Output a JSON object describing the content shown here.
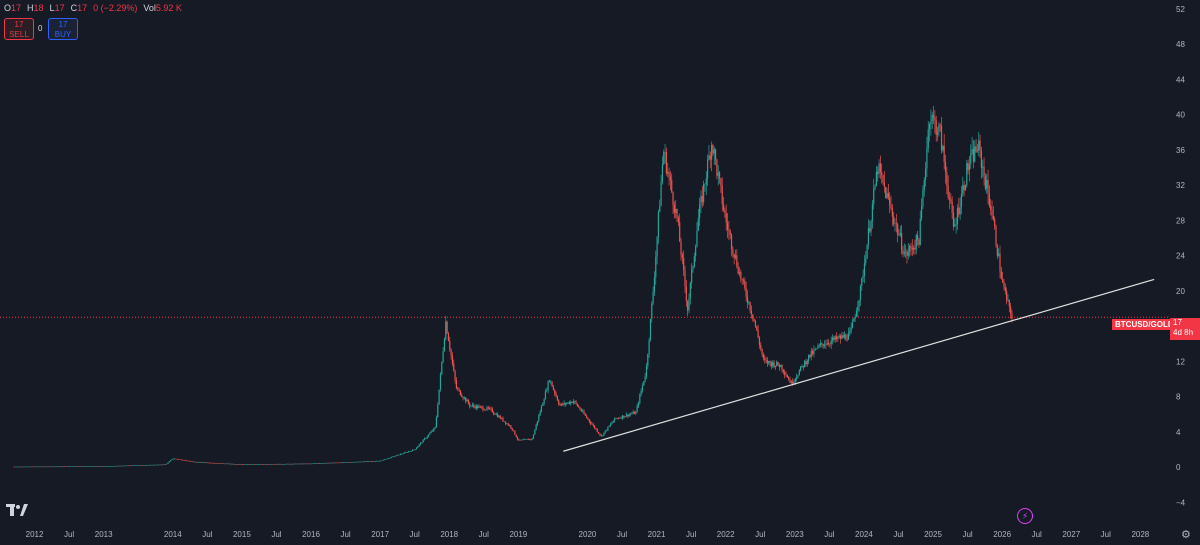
{
  "legend": {
    "o_label": "O",
    "o_value": "17",
    "h_label": "H",
    "h_value": "18",
    "l_label": "L",
    "l_value": "17",
    "c_label": "C",
    "c_value": "17",
    "change": "0 (−2.29%)",
    "vol_label": "Vol",
    "vol_value": "5.92 K"
  },
  "trade": {
    "sell_price": "17",
    "sell_label": "SELL",
    "spread": "0",
    "buy_price": "17",
    "buy_label": "BUY"
  },
  "price_label": {
    "symbol": "BTCUSD/GOLD",
    "price": "17",
    "countdown": "4d 8h"
  },
  "icons": {
    "logo": "tradingview-logo-icon",
    "settings": "gear-icon",
    "event": "lightning-event-icon"
  },
  "colors": {
    "background": "#161a25",
    "up": "#26a69a",
    "down": "#ef5350",
    "trendline": "#e0e0e0",
    "last_price": "#f23645"
  },
  "chart_data": {
    "type": "candlestick",
    "symbol": "BTCUSD/GOLD",
    "interval": "weekly",
    "y_ticks": [
      -4,
      0,
      4,
      8,
      12,
      16,
      20,
      24,
      28,
      32,
      36,
      40,
      44,
      48,
      52
    ],
    "ylim": [
      -6,
      53
    ],
    "x_ticks": [
      "2012",
      "Jul",
      "2013",
      "2014",
      "Jul",
      "2015",
      "Jul",
      "2016",
      "Jul",
      "2017",
      "Jul",
      "2018",
      "Jul",
      "2019",
      "2020",
      "Jul",
      "2021",
      "Jul",
      "2022",
      "Jul",
      "2023",
      "Jul",
      "2024",
      "Jul",
      "2025",
      "Jul",
      "2026",
      "Jul",
      "2027",
      "Jul",
      "2028"
    ],
    "x_tick_years": [
      2012.0,
      2012.5,
      2013.0,
      2014.0,
      2014.5,
      2015.0,
      2015.5,
      2016.0,
      2016.5,
      2017.0,
      2017.5,
      2018.0,
      2018.5,
      2019.0,
      2020.0,
      2020.5,
      2021.0,
      2021.5,
      2022.0,
      2022.5,
      2023.0,
      2023.5,
      2024.0,
      2024.5,
      2025.0,
      2025.5,
      2026.0,
      2026.5,
      2027.0,
      2027.5,
      2028.0
    ],
    "xlim": [
      2011.5,
      2028.4
    ],
    "price_path": [
      [
        2011.7,
        0.05
      ],
      [
        2013.0,
        0.1
      ],
      [
        2013.9,
        0.3
      ],
      [
        2014.0,
        1.0
      ],
      [
        2014.3,
        0.6
      ],
      [
        2015.0,
        0.3
      ],
      [
        2016.0,
        0.4
      ],
      [
        2017.0,
        0.7
      ],
      [
        2017.5,
        2.0
      ],
      [
        2017.8,
        4.5
      ],
      [
        2017.95,
        16.5
      ],
      [
        2018.1,
        9.0
      ],
      [
        2018.3,
        7.0
      ],
      [
        2018.6,
        6.5
      ],
      [
        2018.9,
        4.5
      ],
      [
        2019.0,
        3.0
      ],
      [
        2019.2,
        3.2
      ],
      [
        2019.45,
        10.0
      ],
      [
        2019.6,
        7.0
      ],
      [
        2019.8,
        7.5
      ],
      [
        2019.95,
        6.0
      ],
      [
        2020.2,
        3.5
      ],
      [
        2020.4,
        5.5
      ],
      [
        2020.7,
        6.2
      ],
      [
        2020.85,
        11.0
      ],
      [
        2020.95,
        20.0
      ],
      [
        2021.1,
        36.0
      ],
      [
        2021.3,
        28.0
      ],
      [
        2021.45,
        18.0
      ],
      [
        2021.6,
        28.0
      ],
      [
        2021.8,
        37.0
      ],
      [
        2022.0,
        28.0
      ],
      [
        2022.2,
        22.0
      ],
      [
        2022.4,
        17.0
      ],
      [
        2022.55,
        12.0
      ],
      [
        2022.8,
        11.5
      ],
      [
        2022.95,
        9.5
      ],
      [
        2023.2,
        12.5
      ],
      [
        2023.4,
        14.0
      ],
      [
        2023.6,
        14.5
      ],
      [
        2023.8,
        15.0
      ],
      [
        2023.95,
        20.0
      ],
      [
        2024.2,
        34.0
      ],
      [
        2024.4,
        29.0
      ],
      [
        2024.6,
        24.0
      ],
      [
        2024.8,
        26.0
      ],
      [
        2024.95,
        40.0
      ],
      [
        2025.1,
        38.0
      ],
      [
        2025.3,
        27.0
      ],
      [
        2025.5,
        34.0
      ],
      [
        2025.65,
        36.5
      ],
      [
        2025.85,
        29.0
      ],
      [
        2026.0,
        21.0
      ],
      [
        2026.1,
        18.0
      ],
      [
        2026.15,
        17.0
      ]
    ],
    "trendline": {
      "from": [
        2019.65,
        1.8
      ],
      "to": [
        2028.2,
        21.3
      ]
    },
    "last_price": 17
  }
}
